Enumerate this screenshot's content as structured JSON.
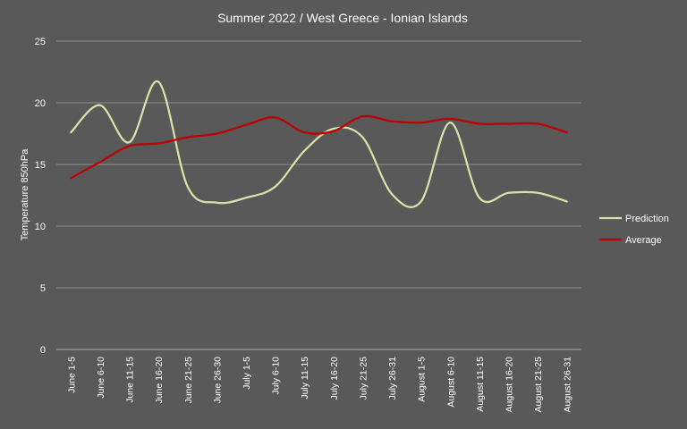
{
  "chart_data": {
    "type": "line",
    "title": "Summer 2022 / West Greece - Ionian Islands",
    "ylabel": "Temperature 850hPa",
    "xlabel": "",
    "ylim": [
      0,
      25
    ],
    "yticks": [
      0,
      5,
      10,
      15,
      20,
      25
    ],
    "grid": true,
    "legend_position": "right",
    "categories": [
      "June 1-5",
      "June 6-10",
      "June 11-15",
      "June 16-20",
      "June 21-25",
      "June 26-30",
      "July 1-5",
      "July 6-10",
      "July 11-15",
      "July 16-20",
      "July 21-25",
      "July 26-31",
      "August 1-5",
      "August 6-10",
      "August 11-15",
      "August 16-20",
      "August 21-25",
      "August 26-31"
    ],
    "series": [
      {
        "name": "Prediction",
        "color": "#d6e2a8",
        "values": [
          17.6,
          19.8,
          16.8,
          21.7,
          13.2,
          11.9,
          12.3,
          13.2,
          16.1,
          17.9,
          17.2,
          12.6,
          12.0,
          18.4,
          12.3,
          12.7,
          12.7,
          12.0
        ]
      },
      {
        "name": "Average",
        "color": "#c00000",
        "values": [
          13.9,
          15.2,
          16.5,
          16.7,
          17.2,
          17.5,
          18.2,
          18.8,
          17.6,
          17.7,
          18.9,
          18.5,
          18.4,
          18.7,
          18.3,
          18.3,
          18.3,
          17.6
        ]
      }
    ]
  }
}
